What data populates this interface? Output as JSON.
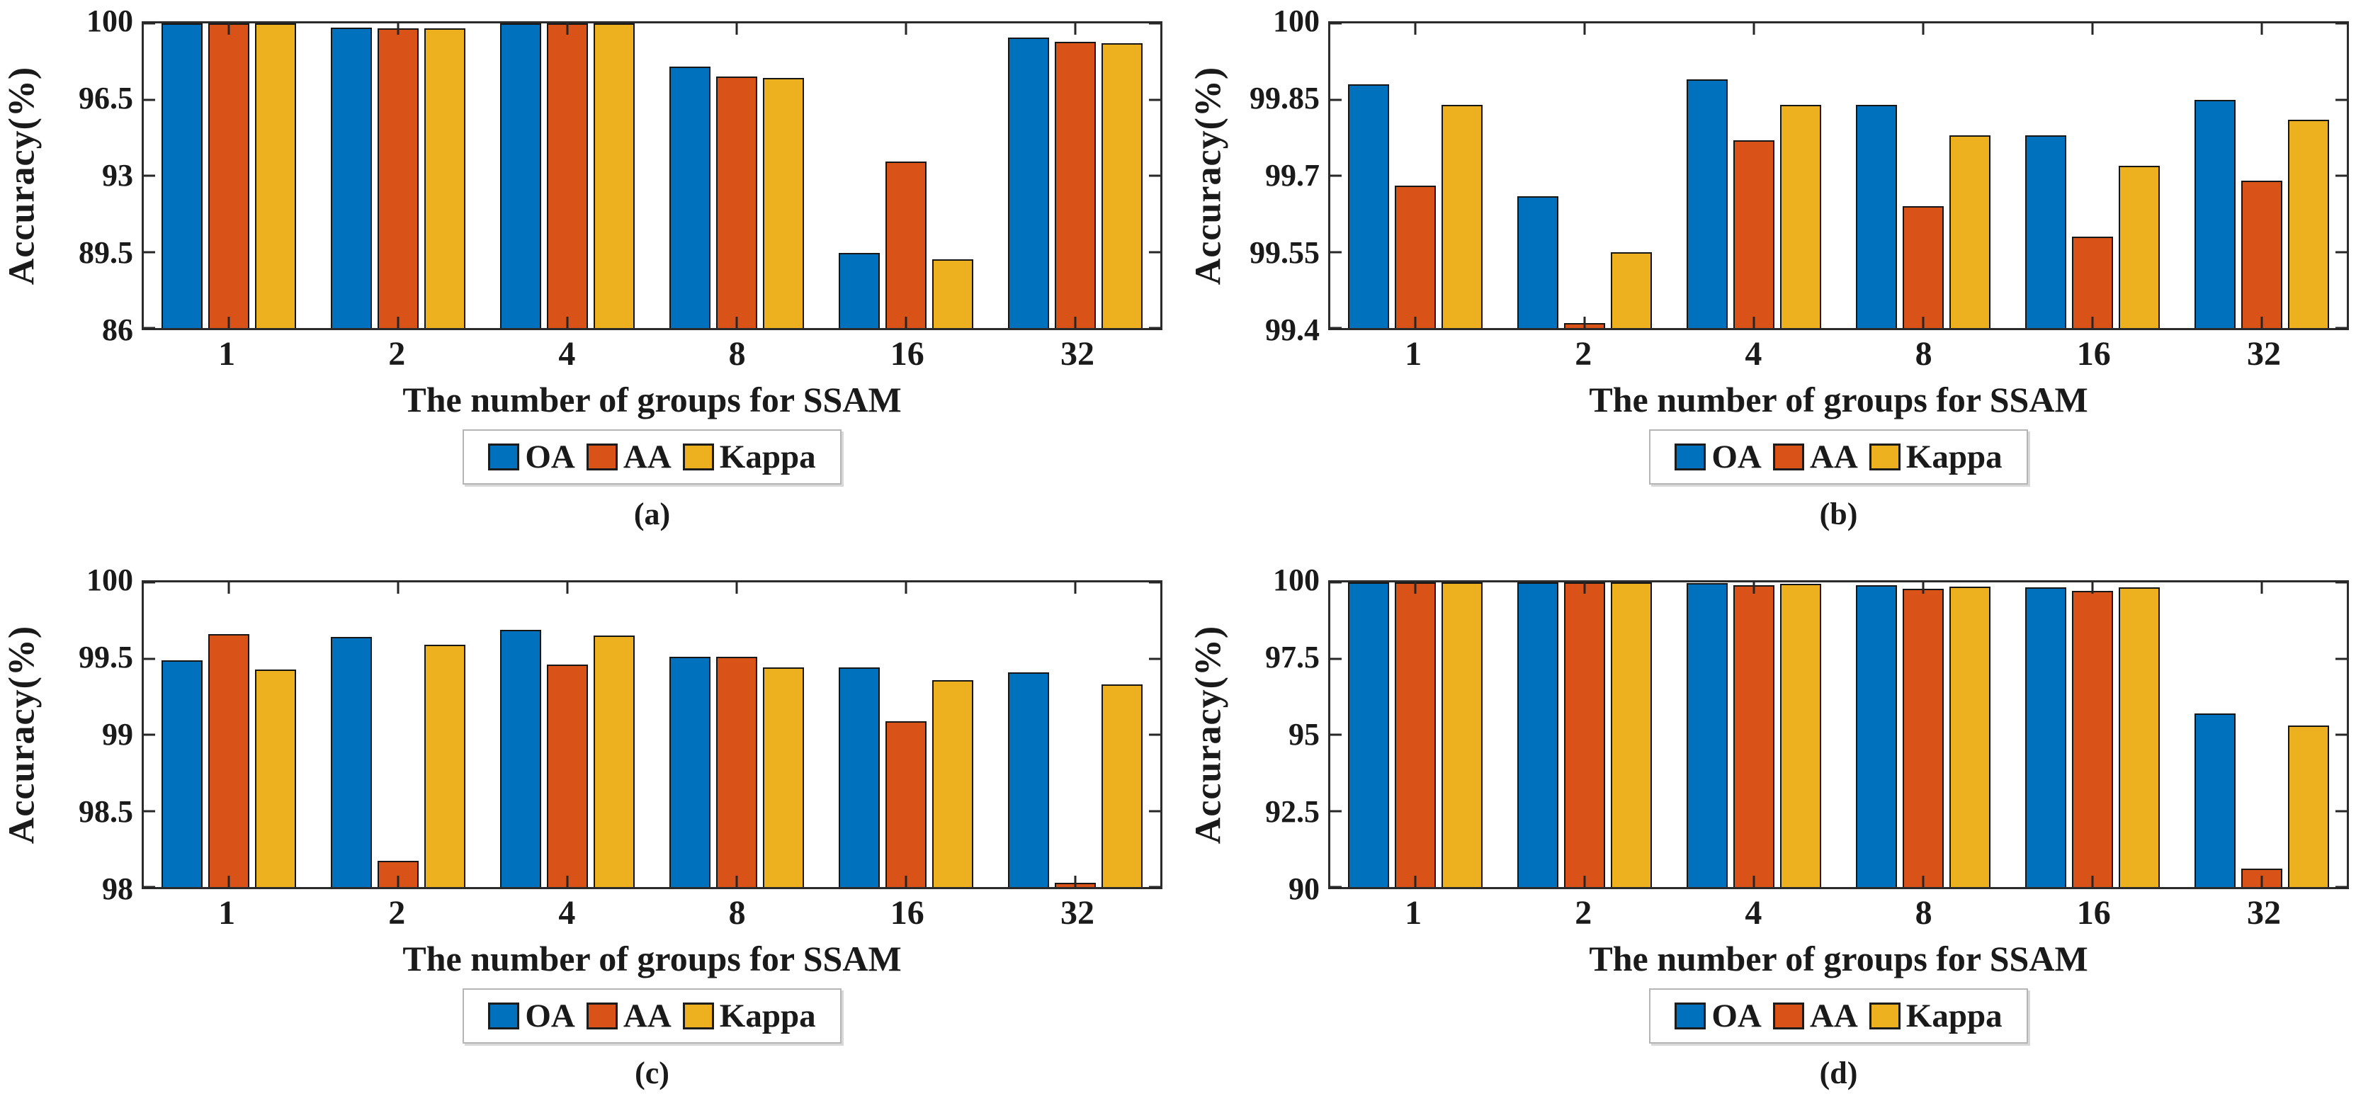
{
  "figure": {
    "ylabel": "Accuracy(%)",
    "xlabel": "The number of groups for SSAM",
    "legend": [
      "OA",
      "AA",
      "Kappa"
    ],
    "colors": {
      "OA": "#0072BD",
      "AA": "#D95319",
      "Kappa": "#EDB120"
    },
    "axis_color": "#262626",
    "background": "#ffffff"
  },
  "chart_data": [
    {
      "id": "a",
      "type": "bar",
      "caption": "(a)",
      "title": "",
      "xlabel": "The number of groups for SSAM",
      "ylabel": "Accuracy(%)",
      "categories": [
        "1",
        "2",
        "4",
        "8",
        "16",
        "32"
      ],
      "ylim": [
        86,
        100
      ],
      "yticks": [
        86,
        89.5,
        93,
        96.5,
        100
      ],
      "grid": false,
      "legend_position": "bottom",
      "series": [
        {
          "name": "OA",
          "color": "#0072BD",
          "values": [
            100,
            99.8,
            100,
            98.0,
            89.45,
            99.35
          ]
        },
        {
          "name": "AA",
          "color": "#D95319",
          "values": [
            100,
            99.78,
            100,
            97.55,
            93.65,
            99.15
          ]
        },
        {
          "name": "Kappa",
          "color": "#EDB120",
          "values": [
            100,
            99.76,
            100,
            97.5,
            89.15,
            99.1
          ]
        }
      ]
    },
    {
      "id": "b",
      "type": "bar",
      "caption": "(b)",
      "title": "",
      "xlabel": "The number of groups for SSAM",
      "ylabel": "Accuracy(%)",
      "categories": [
        "1",
        "2",
        "4",
        "8",
        "16",
        "32"
      ],
      "ylim": [
        99.4,
        100
      ],
      "yticks": [
        99.4,
        99.55,
        99.7,
        99.85,
        100
      ],
      "grid": false,
      "legend_position": "bottom",
      "series": [
        {
          "name": "OA",
          "color": "#0072BD",
          "values": [
            99.88,
            99.66,
            99.89,
            99.84,
            99.78,
            99.85
          ]
        },
        {
          "name": "AA",
          "color": "#D95319",
          "values": [
            99.68,
            99.41,
            99.77,
            99.64,
            99.58,
            99.69
          ]
        },
        {
          "name": "Kappa",
          "color": "#EDB120",
          "values": [
            99.84,
            99.55,
            99.84,
            99.78,
            99.72,
            99.81
          ]
        }
      ]
    },
    {
      "id": "c",
      "type": "bar",
      "caption": "(c)",
      "title": "",
      "xlabel": "The number of groups for SSAM",
      "ylabel": "Accuracy(%)",
      "categories": [
        "1",
        "2",
        "4",
        "8",
        "16",
        "32"
      ],
      "ylim": [
        98,
        100
      ],
      "yticks": [
        98,
        98.5,
        99,
        99.5,
        100
      ],
      "grid": false,
      "legend_position": "bottom",
      "series": [
        {
          "name": "OA",
          "color": "#0072BD",
          "values": [
            99.49,
            99.64,
            99.69,
            99.51,
            99.44,
            99.41
          ]
        },
        {
          "name": "AA",
          "color": "#D95319",
          "values": [
            99.66,
            98.17,
            99.46,
            99.51,
            99.09,
            98.03
          ]
        },
        {
          "name": "Kappa",
          "color": "#EDB120",
          "values": [
            99.43,
            99.59,
            99.65,
            99.44,
            99.36,
            99.33
          ]
        }
      ]
    },
    {
      "id": "d",
      "type": "bar",
      "caption": "(d)",
      "title": "",
      "xlabel": "The number of groups for SSAM",
      "ylabel": "Accuracy(%)",
      "categories": [
        "1",
        "2",
        "4",
        "8",
        "16",
        "32"
      ],
      "ylim": [
        90,
        100
      ],
      "yticks": [
        90,
        92.5,
        95,
        97.5,
        100
      ],
      "grid": false,
      "legend_position": "bottom",
      "series": [
        {
          "name": "OA",
          "color": "#0072BD",
          "values": [
            100,
            100,
            99.97,
            99.91,
            99.83,
            95.7
          ]
        },
        {
          "name": "AA",
          "color": "#D95319",
          "values": [
            100,
            100,
            99.9,
            99.79,
            99.73,
            90.6
          ]
        },
        {
          "name": "Kappa",
          "color": "#EDB120",
          "values": [
            100,
            100,
            99.95,
            99.86,
            99.83,
            95.3
          ]
        }
      ]
    }
  ]
}
